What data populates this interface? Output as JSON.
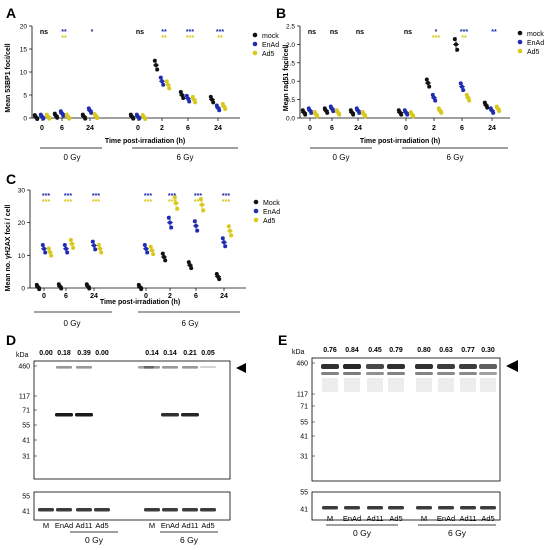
{
  "panels": {
    "A": {
      "letter": "A",
      "ylabel": "Mean 53BP1 foci/cell",
      "xlabel": "Time post-irradiation (h)",
      "y_ticks": [
        "20",
        "15",
        "10",
        "5",
        "0"
      ],
      "x_ticks": [
        "0",
        "6",
        "24",
        "0",
        "2",
        "6",
        "24"
      ],
      "dose_labels": [
        "0 Gy",
        "6 Gy"
      ],
      "sig_top": [
        "ns",
        "**",
        "*",
        "ns",
        "**",
        "***",
        "***"
      ],
      "sig_bottom": [
        "",
        "**",
        "",
        "",
        "**",
        "***",
        "**"
      ],
      "legend": [
        "mock",
        "EnAd",
        "Ad5"
      ]
    },
    "B": {
      "letter": "B",
      "ylabel": "Mean rad51 foci/cell",
      "xlabel": "Time post-irradiation (h)",
      "y_ticks": [
        "2.5",
        "2.0",
        "1.5",
        "1.0",
        "0.5",
        "0.0"
      ],
      "x_ticks": [
        "0",
        "6",
        "24",
        "0",
        "2",
        "6",
        "24"
      ],
      "dose_labels": [
        "0 Gy",
        "6 Gy"
      ],
      "sig_top": [
        "ns",
        "ns",
        "ns",
        "ns",
        "*",
        "***",
        "**"
      ],
      "sig_bottom": [
        "",
        "",
        "",
        "",
        "***",
        "**",
        ""
      ],
      "legend": [
        "mock",
        "EnAd",
        "Ad5"
      ]
    },
    "C": {
      "letter": "C",
      "ylabel": "Mean no. γH2AX foci / cell",
      "xlabel": "Time post-irradiation (h)",
      "y_ticks": [
        "30",
        "20",
        "10",
        "0"
      ],
      "x_ticks": [
        "0",
        "6",
        "24",
        "0",
        "2",
        "6",
        "24"
      ],
      "dose_labels": [
        "0 Gy",
        "6 Gy"
      ],
      "sig_top": [
        "***",
        "***",
        "***",
        "***",
        "***",
        "***",
        "***"
      ],
      "sig_bottom": [
        "***",
        "***",
        "***",
        "***",
        "***",
        "***",
        "***"
      ],
      "legend": [
        "Mock",
        "EnAd",
        "Ad5"
      ]
    },
    "D": {
      "letter": "D",
      "unit": "kDa",
      "markers_top": [
        "460",
        "117",
        "71",
        "55",
        "41",
        "31"
      ],
      "markers_bottom": [
        "55",
        "41"
      ],
      "ratios": [
        "0.00",
        "0.18",
        "0.39",
        "0.00",
        "0.14",
        "0.14",
        "0.21",
        "0.05"
      ],
      "lanes": [
        "M",
        "EnAd",
        "Ad11",
        "Ad5",
        "M",
        "EnAd",
        "Ad11",
        "Ad5"
      ],
      "groups": [
        "0 Gy",
        "6 Gy"
      ]
    },
    "E": {
      "letter": "E",
      "unit": "kDa",
      "markers_top": [
        "460",
        "117",
        "71",
        "55",
        "41",
        "31"
      ],
      "markers_bottom": [
        "55",
        "41"
      ],
      "ratios": [
        "0.76",
        "0.84",
        "0.45",
        "0.79",
        "0.80",
        "0.63",
        "0.77",
        "0.30"
      ],
      "lanes": [
        "M",
        "EnAd",
        "Ad11",
        "Ad5",
        "M",
        "EnAd",
        "Ad11",
        "Ad5"
      ],
      "groups": [
        "0 Gy",
        "6 Gy"
      ]
    }
  },
  "chart_data": [
    {
      "panel": "A",
      "type": "scatter",
      "ylabel": "Mean 53BP1 foci/cell",
      "xlabel": "Time post-irradiation (h)",
      "ylim": [
        0,
        20
      ],
      "categories": [
        "0 Gy 0h",
        "0 Gy 6h",
        "0 Gy 24h",
        "6 Gy 0h",
        "6 Gy 2h",
        "6 Gy 6h",
        "6 Gy 24h"
      ],
      "series": [
        {
          "name": "mock",
          "values": [
            0.2,
            0.5,
            0.3,
            0.3,
            11.5,
            5.0,
            4.0
          ]
        },
        {
          "name": "EnAd",
          "values": [
            0.3,
            1.0,
            1.6,
            0.3,
            8.0,
            4.2,
            2.2
          ]
        },
        {
          "name": "Ad5",
          "values": [
            0.3,
            0.3,
            0.4,
            0.2,
            7.2,
            4.0,
            2.5
          ]
        }
      ]
    },
    {
      "panel": "B",
      "type": "scatter",
      "ylabel": "Mean rad51 foci/cell",
      "xlabel": "Time post-irradiation (h)",
      "ylim": [
        0,
        2.5
      ],
      "categories": [
        "0 Gy 0h",
        "0 Gy 6h",
        "0 Gy 24h",
        "6 Gy 0h",
        "6 Gy 2h",
        "6 Gy 6h",
        "6 Gy 24h"
      ],
      "series": [
        {
          "name": "mock",
          "values": [
            0.15,
            0.2,
            0.15,
            0.15,
            0.95,
            2.0,
            0.35
          ]
        },
        {
          "name": "EnAd",
          "values": [
            0.2,
            0.25,
            0.2,
            0.15,
            0.55,
            0.85,
            0.2
          ]
        },
        {
          "name": "Ad5",
          "values": [
            0.1,
            0.15,
            0.1,
            0.1,
            0.2,
            0.55,
            0.25
          ]
        }
      ]
    },
    {
      "panel": "C",
      "type": "scatter",
      "ylabel": "Mean no. γH2AX foci / cell",
      "xlabel": "Time post-irradiation (h)",
      "ylim": [
        0,
        30
      ],
      "categories": [
        "0 Gy 0h",
        "0 Gy 6h",
        "0 Gy 24h",
        "6 Gy 0h",
        "6 Gy 2h",
        "6 Gy 6h",
        "6 Gy 24h"
      ],
      "series": [
        {
          "name": "Mock",
          "values": [
            0.3,
            0.5,
            0.5,
            0.3,
            9.5,
            7.0,
            3.5
          ]
        },
        {
          "name": "EnAd",
          "values": [
            12.0,
            12.0,
            13.0,
            12.0,
            20.0,
            19.0,
            14.0
          ]
        },
        {
          "name": "Ad5",
          "values": [
            11.0,
            13.5,
            12.0,
            11.5,
            26.0,
            25.5,
            17.5
          ]
        }
      ]
    }
  ],
  "colors": {
    "mock": "#111111",
    "EnAd": "#1f2bb0",
    "Ad5": "#d8c81a",
    "sigGreen": "#6ab04c",
    "band": "#1a1a1a"
  }
}
